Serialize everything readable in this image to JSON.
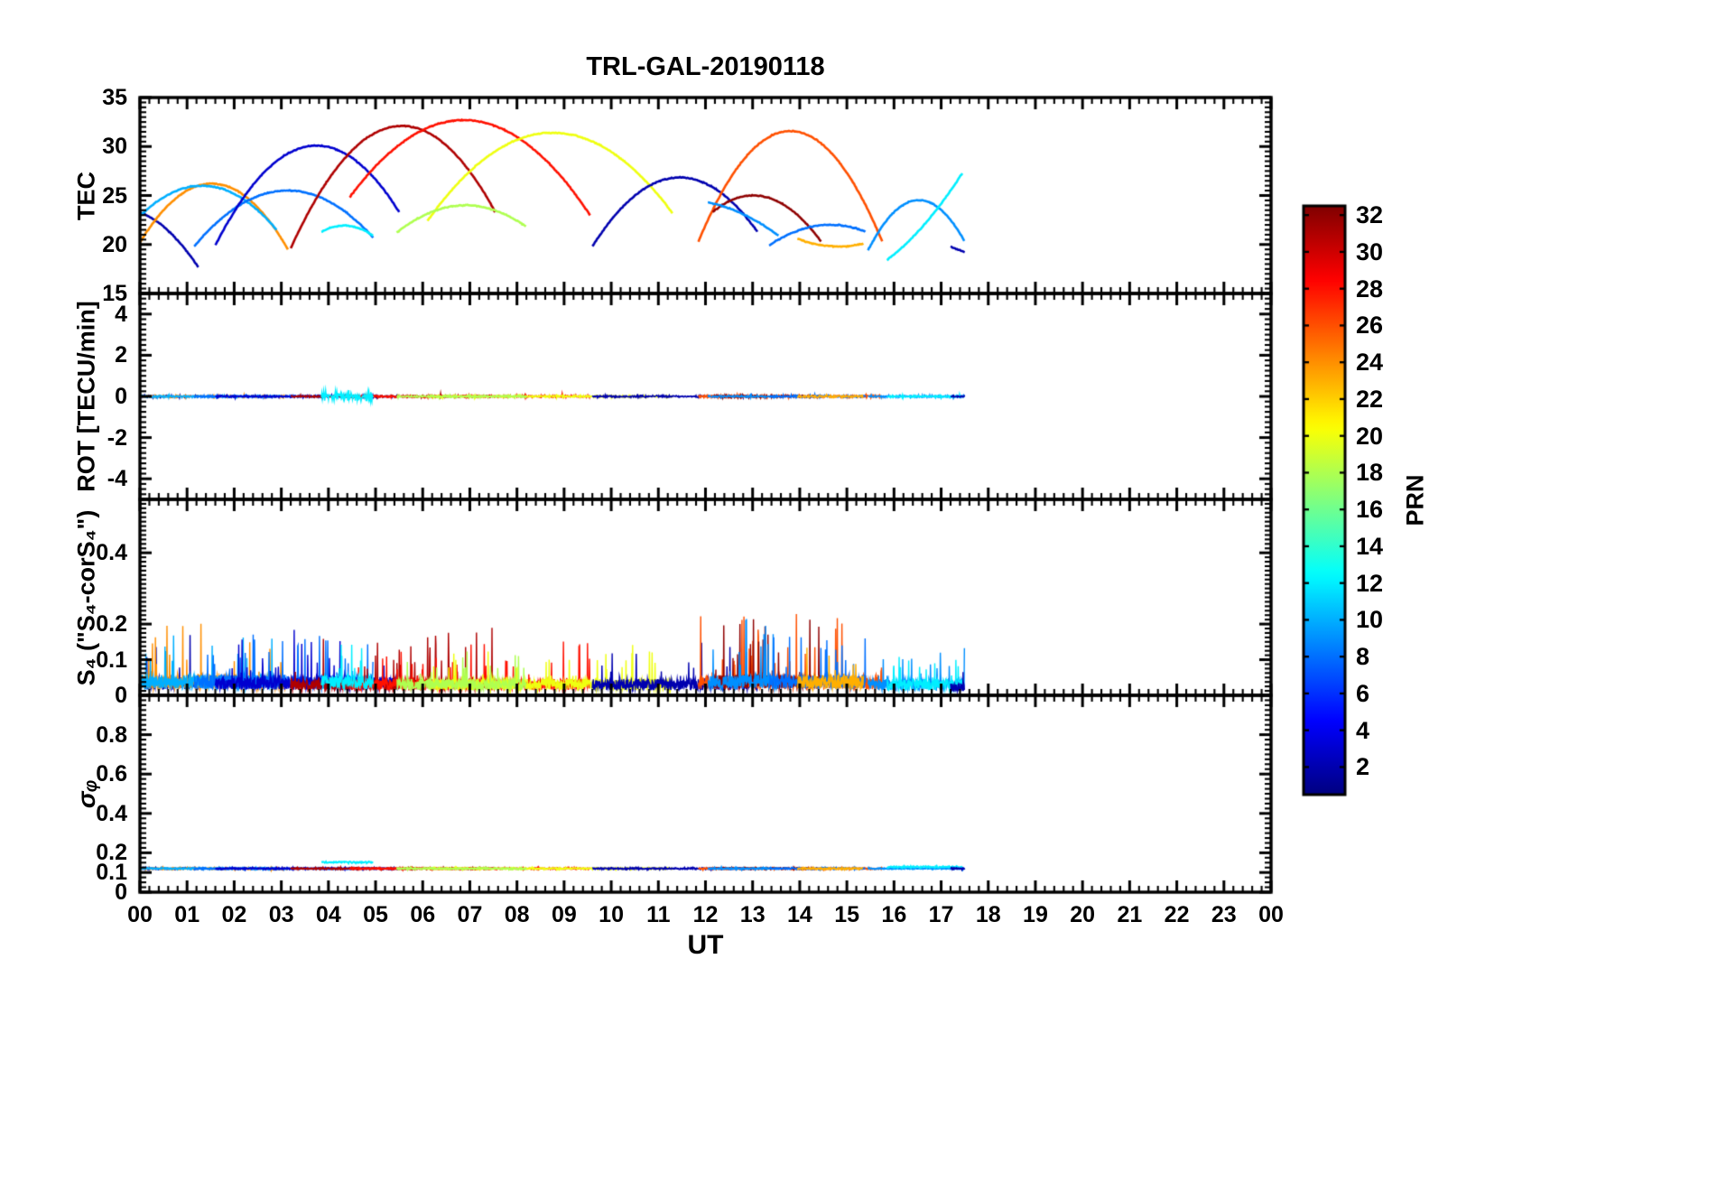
{
  "chart_data": {
    "type": "line",
    "title": "TRL-GAL-20190118",
    "xlabel": "UT",
    "xlim": [
      0,
      24
    ],
    "x_tick_labels": [
      "00",
      "01",
      "02",
      "03",
      "04",
      "05",
      "06",
      "07",
      "08",
      "09",
      "10",
      "11",
      "12",
      "13",
      "14",
      "15",
      "16",
      "17",
      "18",
      "19",
      "20",
      "21",
      "22",
      "23",
      "00"
    ],
    "grid": false,
    "legend": "colorbar",
    "colorbar": {
      "label": "PRN",
      "colormap": "jet",
      "clim": [
        0.5,
        32.5
      ],
      "tick_values": [
        2,
        4,
        6,
        8,
        10,
        12,
        14,
        16,
        18,
        20,
        22,
        24,
        26,
        28,
        30,
        32
      ]
    },
    "panels": [
      {
        "ylabel": "TEC",
        "ylim": [
          15,
          35
        ],
        "ytick_values": [
          15,
          20,
          25,
          30,
          35
        ],
        "ytick_labels": [
          "15",
          "20",
          "25",
          "30",
          "35"
        ],
        "minor_step": 0.5
      },
      {
        "ylabel": "ROT [TECU/min]",
        "ylim": [
          -5,
          5
        ],
        "ytick_values": [
          -4,
          -2,
          0,
          2,
          4
        ],
        "ytick_labels": [
          "-4",
          "-2",
          "0",
          "2",
          "4"
        ],
        "minor_step": 0.25
      },
      {
        "ylabel": "S₄ (\"S₄-corS₄\")",
        "ylim": [
          0,
          0.55
        ],
        "ytick_values": [
          0,
          0.1,
          0.2,
          0.4
        ],
        "ytick_labels": [
          "0",
          "0.1",
          "0.2",
          "0.4"
        ],
        "minor_step": 0.0125
      },
      {
        "ylabel": "σᵩ",
        "ylim": [
          0,
          1.0
        ],
        "ytick_values": [
          0,
          0.1,
          0.2,
          0.4,
          0.6,
          0.8
        ],
        "ytick_labels": [
          "0",
          "0.1",
          "0.2",
          "0.4",
          "0.6",
          "0.8"
        ],
        "minor_step": 0.025
      }
    ],
    "satellites": [
      {
        "prn": 2,
        "tec_points": [
          [
            0.0,
            23.3
          ],
          [
            0.6,
            21.4
          ],
          [
            1.25,
            17.6
          ]
        ],
        "rot_noise": 0.06,
        "s4_base": 0.045,
        "s4_spike": 0.13,
        "sigma_phi": 0.12
      },
      {
        "prn": 24,
        "tec_points": [
          [
            0.0,
            20.2
          ],
          [
            1.45,
            26.2
          ],
          [
            3.15,
            19.4
          ]
        ],
        "rot_noise": 0.06,
        "s4_base": 0.05,
        "s4_spike": 0.15,
        "sigma_phi": 0.12
      },
      {
        "prn": 10,
        "tec_points": [
          [
            0.0,
            22.9
          ],
          [
            1.3,
            26.0
          ],
          [
            2.9,
            21.5
          ]
        ],
        "rot_noise": 0.06,
        "s4_base": 0.05,
        "s4_spike": 0.13,
        "sigma_phi": 0.12
      },
      {
        "prn": 8,
        "tec_points": [
          [
            1.15,
            19.8
          ],
          [
            2.85,
            25.4
          ],
          [
            4.95,
            20.7
          ]
        ],
        "rot_noise": 0.06,
        "s4_base": 0.05,
        "s4_spike": 0.13,
        "sigma_phi": 0.12
      },
      {
        "prn": 3,
        "tec_points": [
          [
            1.6,
            19.9
          ],
          [
            3.55,
            30.0
          ],
          [
            5.5,
            23.3
          ]
        ],
        "rot_noise": 0.06,
        "s4_base": 0.045,
        "s4_spike": 0.14,
        "sigma_phi": 0.12
      },
      {
        "prn": 31,
        "tec_points": [
          [
            3.2,
            19.6
          ],
          [
            5.6,
            32.1
          ],
          [
            7.55,
            23.2
          ]
        ],
        "rot_noise": 0.06,
        "s4_base": 0.04,
        "s4_spike": 0.15,
        "sigma_phi": 0.12
      },
      {
        "prn": 28,
        "tec_points": [
          [
            4.45,
            24.8
          ],
          [
            7.25,
            32.5
          ],
          [
            9.55,
            23.0
          ]
        ],
        "rot_noise": 0.06,
        "s4_base": 0.04,
        "s4_spike": 0.12,
        "sigma_phi": 0.12
      },
      {
        "prn": 20,
        "tec_points": [
          [
            6.1,
            22.4
          ],
          [
            8.85,
            31.4
          ],
          [
            11.3,
            23.2
          ]
        ],
        "rot_noise": 0.06,
        "s4_base": 0.04,
        "s4_spike": 0.1,
        "sigma_phi": 0.12
      },
      {
        "prn": 18,
        "tec_points": [
          [
            5.45,
            21.2
          ],
          [
            6.9,
            24.0
          ],
          [
            8.2,
            21.8
          ]
        ],
        "rot_noise": 0.06,
        "s4_base": 0.04,
        "s4_spike": 0.09,
        "sigma_phi": 0.12
      },
      {
        "prn": 12,
        "tec_points": [
          [
            3.85,
            21.3
          ],
          [
            4.4,
            21.9
          ],
          [
            4.95,
            20.9
          ]
        ],
        "rot_noise": 0.3,
        "s4_base": 0.05,
        "s4_spike": 0.12,
        "sigma_phi": 0.152
      },
      {
        "prn": 2,
        "tec_points": [
          [
            9.6,
            19.8
          ],
          [
            11.6,
            26.8
          ],
          [
            13.1,
            21.3
          ]
        ],
        "rot_noise": 0.06,
        "s4_base": 0.04,
        "s4_spike": 0.12,
        "sigma_phi": 0.12
      },
      {
        "prn": 26,
        "tec_points": [
          [
            11.85,
            20.3
          ],
          [
            13.4,
            31.1
          ],
          [
            15.75,
            20.3
          ]
        ],
        "rot_noise": 0.07,
        "s4_base": 0.05,
        "s4_spike": 0.21,
        "sigma_phi": 0.12
      },
      {
        "prn": 32,
        "tec_points": [
          [
            12.15,
            23.3
          ],
          [
            12.95,
            25.0
          ],
          [
            14.45,
            20.3
          ]
        ],
        "rot_noise": 0.07,
        "s4_base": 0.05,
        "s4_spike": 0.17,
        "sigma_phi": 0.12
      },
      {
        "prn": 9,
        "tec_points": [
          [
            12.05,
            24.3
          ],
          [
            12.75,
            23.2
          ],
          [
            13.55,
            20.9
          ]
        ],
        "rot_noise": 0.06,
        "s4_base": 0.05,
        "s4_spike": 0.16,
        "sigma_phi": 0.12
      },
      {
        "prn": 8,
        "tec_points": [
          [
            13.35,
            19.9
          ],
          [
            14.55,
            22.0
          ],
          [
            15.4,
            21.3
          ]
        ],
        "rot_noise": 0.06,
        "s4_base": 0.05,
        "s4_spike": 0.15,
        "sigma_phi": 0.12
      },
      {
        "prn": 23,
        "tec_points": [
          [
            13.95,
            20.6
          ],
          [
            14.7,
            19.8
          ],
          [
            15.35,
            20.1
          ]
        ],
        "rot_noise": 0.06,
        "s4_base": 0.05,
        "s4_spike": 0.18,
        "sigma_phi": 0.12
      },
      {
        "prn": 9,
        "tec_points": [
          [
            15.45,
            19.4
          ],
          [
            16.45,
            24.5
          ],
          [
            17.5,
            20.3
          ]
        ],
        "rot_noise": 0.06,
        "s4_base": 0.04,
        "s4_spike": 0.09,
        "sigma_phi": 0.12
      },
      {
        "prn": 12,
        "tec_points": [
          [
            15.85,
            18.4
          ],
          [
            16.6,
            21.8
          ],
          [
            17.45,
            27.3
          ]
        ],
        "rot_noise": 0.06,
        "s4_base": 0.04,
        "s4_spike": 0.08,
        "sigma_phi": 0.128
      },
      {
        "prn": 2,
        "tec_points": [
          [
            17.2,
            19.8
          ],
          [
            17.35,
            19.5
          ],
          [
            17.5,
            19.2
          ]
        ],
        "rot_noise": 0.05,
        "s4_base": 0.03,
        "s4_spike": 0.05,
        "sigma_phi": 0.12
      }
    ]
  }
}
